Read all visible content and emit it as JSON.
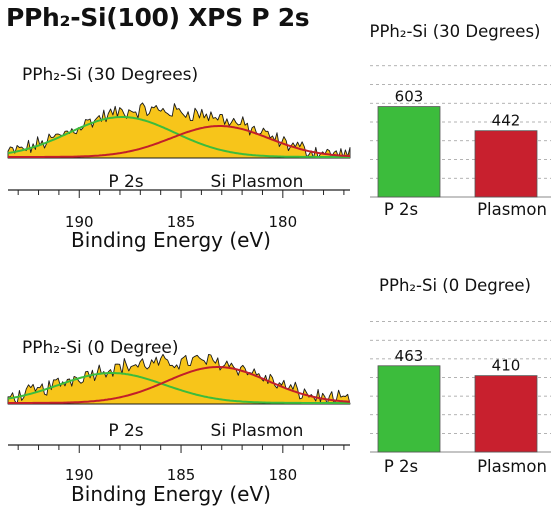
{
  "title": "PPh₂-Si(100) XPS P 2s",
  "colors": {
    "fill": "#f7c51a",
    "fill_edge": "#8a6a00",
    "spectrum_line": "#1a1a1a",
    "p2s_fit": "#3cbc3c",
    "plasmon_fit": "#c21f2a",
    "bar_p2s": "#3cbc3c",
    "bar_plasmon": "#c8202e"
  },
  "chart_data": [
    {
      "type": "area",
      "panel": "spectrum-30",
      "title": "PPh₂-Si (30 Degrees)",
      "xlabel": "Binding Energy (eV)",
      "x_reversed": true,
      "xlim": [
        193.5,
        176.7
      ],
      "x_ticks": [
        190,
        185,
        180
      ],
      "peak_labels": [
        "P 2s",
        "Si Plasmon"
      ],
      "series": [
        {
          "name": "P 2s",
          "center": 187.9,
          "sigma": 2.6,
          "height": 40
        },
        {
          "name": "Si Plasmon",
          "center": 183.1,
          "sigma": 2.4,
          "height": 31
        }
      ]
    },
    {
      "type": "bar",
      "panel": "bars-30",
      "title": "PPh₂-Si (30 Degrees)",
      "categories": [
        "P 2s",
        "Plasmon"
      ],
      "values": [
        603,
        442
      ],
      "ylim": [
        0,
        1000
      ],
      "grid": true
    },
    {
      "type": "area",
      "panel": "spectrum-0",
      "title": "PPh₂-Si (0 Degree)",
      "xlabel": "Binding Energy (eV)",
      "x_reversed": true,
      "xlim": [
        193.5,
        176.7
      ],
      "x_ticks": [
        190,
        185,
        180
      ],
      "peak_labels": [
        "P 2s",
        "Si Plasmon"
      ],
      "series": [
        {
          "name": "P 2s",
          "center": 188.4,
          "sigma": 2.6,
          "height": 30
        },
        {
          "name": "Si Plasmon",
          "center": 183.2,
          "sigma": 2.5,
          "height": 36
        }
      ]
    },
    {
      "type": "bar",
      "panel": "bars-0",
      "title": "PPh₂-Si (0 Degree)",
      "categories": [
        "P 2s",
        "Plasmon"
      ],
      "values": [
        463,
        410
      ],
      "ylim": [
        0,
        800
      ],
      "grid": true
    }
  ]
}
